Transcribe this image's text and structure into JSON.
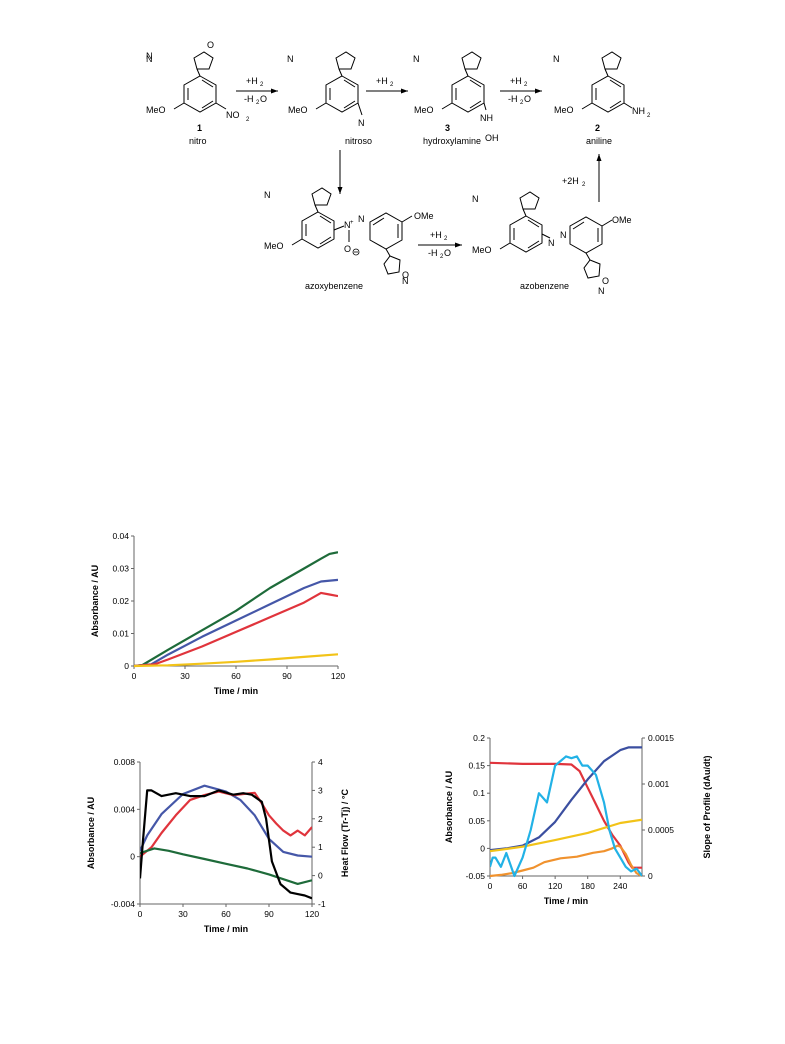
{
  "scheme": {
    "nitro_num": "1",
    "nitro_name": "nitro",
    "nitroso_name": "nitroso",
    "hydroxylamine_num": "3",
    "hydroxylamine_name": "hydroxylamine",
    "aniline_num": "2",
    "aniline_name": "aniline",
    "azoxy_name": "azoxybenzene",
    "azo_name": "azobenzene",
    "h2": "+H",
    "minus_h2o": "-H",
    "plus_2h2": "+2H",
    "meo": "MeO",
    "ome": "OMe",
    "no2": "NO",
    "nh2": "NH",
    "nh": "NH",
    "oh": "OH",
    "n": "N",
    "o": "O"
  },
  "chart_data": [
    {
      "type": "line",
      "xlabel": "Time / min",
      "ylabel": "Absorbance / AU",
      "xlim": [
        0,
        120
      ],
      "ylim": [
        0,
        0.04
      ],
      "xticks": [
        "0",
        "30",
        "60",
        "90",
        "120"
      ],
      "yticks": [
        "0",
        "0.01",
        "0.02",
        "0.03",
        "0.04"
      ],
      "series": [
        {
          "color": "#1e6b3a",
          "x": [
            0,
            5,
            20,
            40,
            60,
            80,
            100,
            110,
            115,
            120
          ],
          "y": [
            0,
            0.0003,
            0.005,
            0.011,
            0.017,
            0.024,
            0.03,
            0.033,
            0.0345,
            0.035
          ]
        },
        {
          "color": "#4557a8",
          "x": [
            0,
            10,
            20,
            40,
            60,
            80,
            100,
            110,
            120
          ],
          "y": [
            0,
            0.0005,
            0.0035,
            0.009,
            0.014,
            0.019,
            0.024,
            0.026,
            0.0265
          ]
        },
        {
          "color": "#e0343c",
          "x": [
            0,
            12,
            20,
            40,
            60,
            80,
            100,
            110,
            115,
            120
          ],
          "y": [
            0,
            0.0005,
            0.002,
            0.006,
            0.0105,
            0.015,
            0.0195,
            0.0225,
            0.022,
            0.0215
          ]
        },
        {
          "color": "#f2c318",
          "x": [
            0,
            20,
            40,
            60,
            80,
            100,
            120
          ],
          "y": [
            0,
            0.0002,
            0.0007,
            0.0013,
            0.002,
            0.0028,
            0.0036
          ]
        }
      ]
    },
    {
      "type": "line",
      "xlabel": "Time / min",
      "ylabel": "Absorbance / AU",
      "y2label": "Heat Flow (Tr-Tj) / °C",
      "xlim": [
        0,
        120
      ],
      "ylim": [
        -0.004,
        0.008
      ],
      "y2lim": [
        -1,
        4
      ],
      "xticks": [
        "0",
        "30",
        "60",
        "90",
        "120"
      ],
      "yticks": [
        "-0.004",
        "0",
        "0.004",
        "0.008"
      ],
      "y2ticks": [
        "-1",
        "0",
        "1",
        "2",
        "3",
        "4"
      ],
      "series": [
        {
          "color": "#4557a8",
          "axis": "y",
          "x": [
            0,
            5,
            15,
            30,
            45,
            60,
            70,
            80,
            90,
            100,
            110,
            120
          ],
          "y": [
            0.0005,
            0.0018,
            0.0036,
            0.0053,
            0.006,
            0.0055,
            0.0048,
            0.0035,
            0.0015,
            0.0004,
            0.0001,
            0
          ]
        },
        {
          "color": "#e0343c",
          "axis": "y",
          "x": [
            0,
            8,
            15,
            25,
            35,
            45,
            55,
            65,
            72,
            80,
            85,
            90,
            95,
            100,
            105,
            110,
            115,
            120
          ],
          "y": [
            0,
            0.0008,
            0.002,
            0.0035,
            0.0048,
            0.0052,
            0.0055,
            0.0052,
            0.0053,
            0.0054,
            0.0045,
            0.0035,
            0.0028,
            0.0022,
            0.0018,
            0.0022,
            0.0018,
            0.0025
          ]
        },
        {
          "color": "#1e6b3a",
          "axis": "y",
          "x": [
            0,
            10,
            20,
            30,
            45,
            60,
            75,
            90,
            100,
            110,
            120
          ],
          "y": [
            0.0003,
            0.0007,
            0.0005,
            0.0002,
            -0.0002,
            -0.0006,
            -0.001,
            -0.0015,
            -0.0019,
            -0.0023,
            -0.002
          ]
        },
        {
          "color": "#000000",
          "axis": "y2",
          "x": [
            0,
            2,
            5,
            8,
            15,
            25,
            35,
            45,
            55,
            65,
            72,
            78,
            85,
            88,
            92,
            98,
            105,
            110,
            115,
            120
          ],
          "y": [
            -0.1,
            1.2,
            3.0,
            3.0,
            2.8,
            2.9,
            2.8,
            2.8,
            3.0,
            2.85,
            2.9,
            2.85,
            2.6,
            2.0,
            0.5,
            -0.3,
            -0.6,
            -0.65,
            -0.7,
            -0.8
          ]
        }
      ]
    },
    {
      "type": "line",
      "xlabel": "Time / min",
      "ylabel": "Absorbance / AU",
      "y2label": "Slope of Profile (dAu/dt)",
      "xlim": [
        0,
        280
      ],
      "ylim": [
        -0.05,
        0.2
      ],
      "y2lim": [
        0,
        0.0015
      ],
      "xticks": [
        "0",
        "60",
        "120",
        "180",
        "240"
      ],
      "yticks": [
        "-0.05",
        "0",
        "0.05",
        "0.1",
        "0.15",
        "0.2"
      ],
      "y2ticks": [
        "0",
        "0.0005",
        "0.001",
        "0.0015"
      ],
      "series": [
        {
          "color": "#e0343c",
          "axis": "y",
          "x": [
            0,
            60,
            120,
            150,
            165,
            180,
            195,
            210,
            225,
            240,
            255,
            262,
            280
          ],
          "y": [
            0.155,
            0.153,
            0.153,
            0.152,
            0.14,
            0.11,
            0.08,
            0.05,
            0.025,
            0.005,
            -0.025,
            -0.035,
            -0.035
          ]
        },
        {
          "color": "#3b4fa0",
          "axis": "y",
          "x": [
            0,
            30,
            60,
            90,
            120,
            150,
            180,
            210,
            240,
            255,
            270,
            280
          ],
          "y": [
            -0.003,
            0,
            0.005,
            0.02,
            0.048,
            0.088,
            0.125,
            0.158,
            0.178,
            0.183,
            0.183,
            0.183
          ]
        },
        {
          "color": "#f2c318",
          "axis": "y",
          "x": [
            0,
            60,
            120,
            180,
            240,
            280
          ],
          "y": [
            -0.005,
            0.003,
            0.015,
            0.028,
            0.046,
            0.052
          ]
        },
        {
          "color": "#f0922e",
          "axis": "y",
          "x": [
            0,
            20,
            40,
            60,
            80,
            100,
            130,
            160,
            190,
            210,
            225,
            235,
            240,
            250,
            260,
            270,
            280
          ],
          "y": [
            -0.05,
            -0.048,
            -0.045,
            -0.04,
            -0.035,
            -0.025,
            -0.018,
            -0.015,
            -0.008,
            -0.005,
            0.0,
            0.005,
            0.003,
            -0.01,
            -0.03,
            -0.045,
            -0.05
          ]
        },
        {
          "color": "#22b2e6",
          "axis": "y2",
          "x": [
            0,
            5,
            10,
            20,
            30,
            45,
            60,
            75,
            90,
            105,
            120,
            130,
            140,
            150,
            160,
            170,
            180,
            195,
            210,
            220,
            230,
            240,
            250,
            260,
            270,
            280
          ],
          "y": [
            0.0001,
            0.0002,
            0.0002,
            0.0001,
            0.00025,
            0.0,
            0.0002,
            0.0005,
            0.0009,
            0.0008,
            0.0012,
            0.00125,
            0.0013,
            0.00128,
            0.0013,
            0.0012,
            0.0012,
            0.0011,
            0.0008,
            0.0005,
            0.0003,
            0.0002,
            0.0001,
            5e-05,
            8e-05,
            0.0
          ]
        }
      ]
    }
  ]
}
